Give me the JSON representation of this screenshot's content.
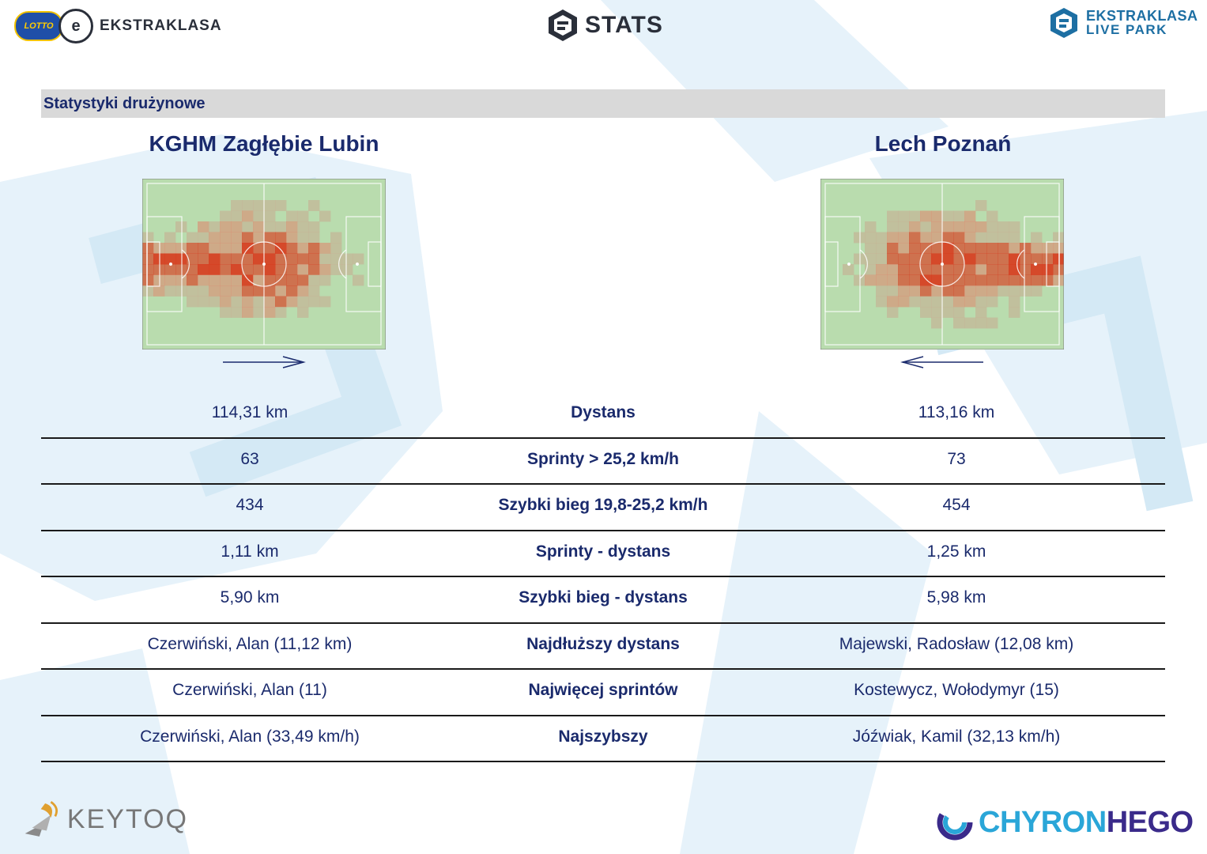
{
  "header": {
    "lotto_text": "LOTTO",
    "league_name": "EKSTRAKLASA",
    "stats_title": "STATS",
    "live_line1": "EKSTRAKLASA",
    "live_line2": "LIVE PARK"
  },
  "section": {
    "title": "Statystyki drużynowe"
  },
  "teams": {
    "home": {
      "name": "KGHM Zagłębie Lubin",
      "attack_direction": "right"
    },
    "away": {
      "name": "Lech Poznań",
      "attack_direction": "left"
    }
  },
  "stats": [
    {
      "label": "Dystans",
      "home": "114,31 km",
      "away": "113,16 km"
    },
    {
      "label": "Sprinty > 25,2 km/h",
      "home": "63",
      "away": "73"
    },
    {
      "label": "Szybki bieg 19,8-25,2 km/h",
      "home": "434",
      "away": "454"
    },
    {
      "label": "Sprinty - dystans",
      "home": "1,11 km",
      "away": "1,25 km"
    },
    {
      "label": "Szybki bieg - dystans",
      "home": "5,90 km",
      "away": "5,98 km"
    },
    {
      "label": "Najdłuższy dystans",
      "home": "Czerwiński, Alan (11,12 km)",
      "away": "Majewski, Radosław (12,08 km)"
    },
    {
      "label": "Najwięcej sprintów",
      "home": "Czerwiński, Alan (11)",
      "away": "Kostewycz, Wołodymyr (15)"
    },
    {
      "label": "Najszybszy",
      "home": "Czerwiński, Alan (33,49 km/h)",
      "away": "Jóźwiak, Kamil (32,13 km/h)"
    }
  ],
  "footer": {
    "left_brand": "KEYTOQ",
    "right_brand_a": "CHYRON",
    "right_brand_b": "HEGO"
  },
  "colors": {
    "navy": "#1a2a6c",
    "pitch_green": "#b9dcae",
    "heat_high": "#d8391c",
    "heat_mid": "#e0816a",
    "heat_low": "#c9a990",
    "section_bar": "#d9d9d9"
  }
}
